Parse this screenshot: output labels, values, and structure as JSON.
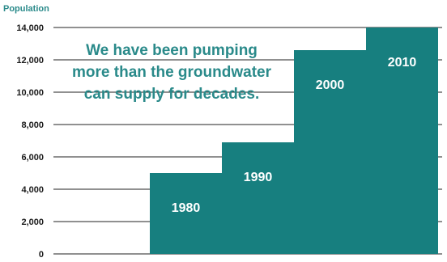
{
  "chart_data": {
    "type": "bar",
    "ylabel": "Population",
    "categories": [
      "1980",
      "1990",
      "2000",
      "2010"
    ],
    "values": [
      5000,
      6900,
      12600,
      14000
    ],
    "ylim": [
      0,
      14000
    ],
    "yticks": [
      "0",
      "2,000",
      "4,000",
      "6,000",
      "8,000",
      "10,000",
      "12,000",
      "14,000"
    ],
    "annotation": [
      "We have been pumping",
      "more than the groundwater",
      "can supply for decades."
    ],
    "grid": true,
    "colors": {
      "bar": "#177f7f",
      "grid": "#222222",
      "axis_title": "#2a8a8a",
      "annotation": "#2a8a8a",
      "bar_label": "#ffffff"
    }
  }
}
